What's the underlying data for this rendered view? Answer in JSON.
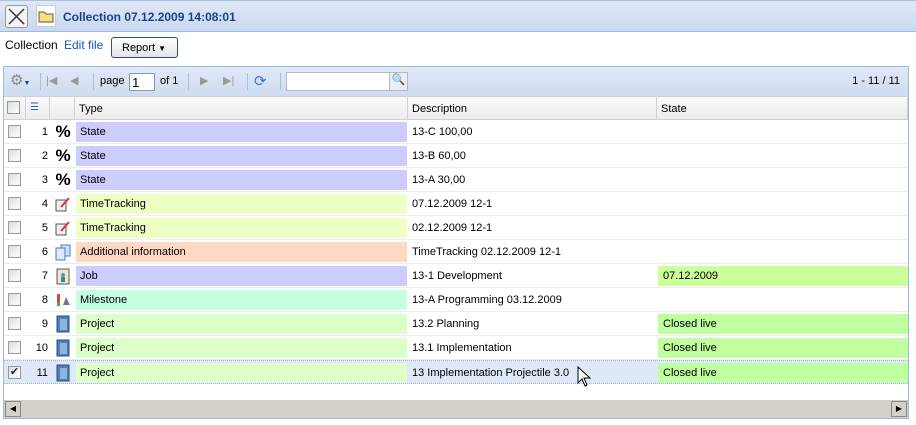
{
  "window": {
    "title": "Collection 07.12.2009 14:08:01"
  },
  "actions": {
    "collection_label": "Collection",
    "edit_file": "Edit file",
    "report": "Report"
  },
  "pager": {
    "page_label": "page",
    "page_value": "1",
    "of_label": "of 1",
    "range": "1 - 11 / 11",
    "search_placeholder": ""
  },
  "columns": {
    "type": "Type",
    "description": "Description",
    "state": "State"
  },
  "rows": [
    {
      "n": "1",
      "icon": "percent-icon",
      "type": "State",
      "color": "#ccccff",
      "desc": "13-C 100,00",
      "state": "",
      "checked": false
    },
    {
      "n": "2",
      "icon": "percent-icon",
      "type": "State",
      "color": "#ccccff",
      "desc": "13-B 60,00",
      "state": "",
      "checked": false
    },
    {
      "n": "3",
      "icon": "percent-icon",
      "type": "State",
      "color": "#ccccff",
      "desc": "13-A 30,00",
      "state": "",
      "checked": false
    },
    {
      "n": "4",
      "icon": "timetracking-icon",
      "type": "TimeTracking",
      "color": "#eeffc4",
      "desc": "07.12.2009 12-1",
      "state": "",
      "checked": false
    },
    {
      "n": "5",
      "icon": "timetracking-icon",
      "type": "TimeTracking",
      "color": "#eeffc4",
      "desc": "02.12.2009 12-1",
      "state": "",
      "checked": false
    },
    {
      "n": "6",
      "icon": "documents-icon",
      "type": "Additional information",
      "color": "#ffd8c4",
      "desc": "TimeTracking 02.12.2009 12-1",
      "state": "",
      "checked": false
    },
    {
      "n": "7",
      "icon": "job-icon",
      "type": "Job",
      "color": "#ccccff",
      "desc": "13-1 Development",
      "state": "07.12.2009",
      "state_color": "#ccff99",
      "checked": false
    },
    {
      "n": "8",
      "icon": "milestone-icon",
      "type": "Milestone",
      "color": "#c4ffe0",
      "desc": "13-A Programming 03.12.2009",
      "state": "",
      "checked": false
    },
    {
      "n": "9",
      "icon": "project-icon",
      "type": "Project",
      "color": "#ddffc8",
      "desc": "13.2 Planning",
      "state": "Closed live",
      "state_color": "#c0ffa0",
      "checked": false
    },
    {
      "n": "10",
      "icon": "project-icon",
      "type": "Project",
      "color": "#ddffc8",
      "desc": "13.1 Implementation",
      "state": "Closed live",
      "state_color": "#c0ffa0",
      "checked": false
    },
    {
      "n": "11",
      "icon": "project-icon",
      "type": "Project",
      "color": "#ddffc8",
      "desc": "13 Implementation Projectile 3.0",
      "state": "Closed live",
      "state_color": "#c0ffa0",
      "checked": true
    }
  ]
}
